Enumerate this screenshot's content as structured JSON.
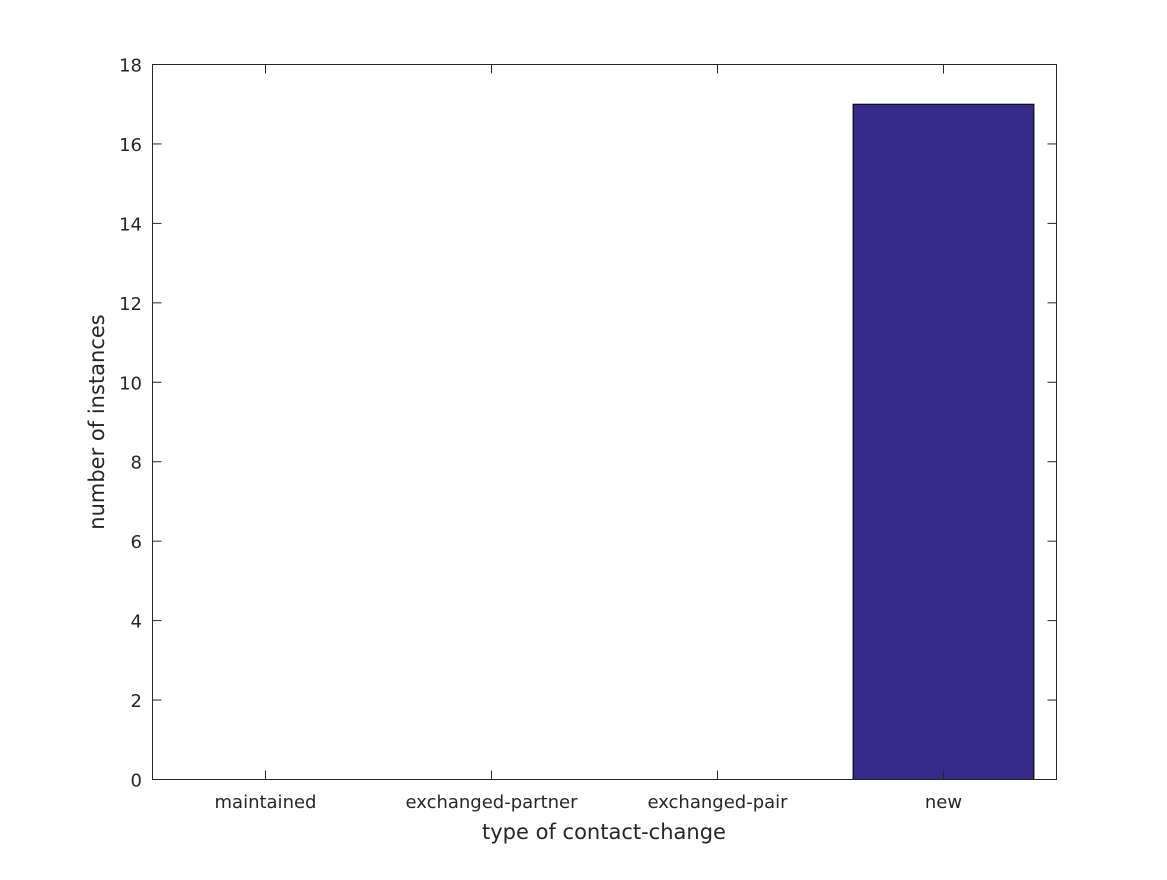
{
  "chart_data": {
    "type": "bar",
    "title": "",
    "xlabel": "type of contact-change",
    "ylabel": "number of instances",
    "categories": [
      "maintained",
      "exchanged-partner",
      "exchanged-pair",
      "new"
    ],
    "values": [
      0,
      0,
      0,
      17
    ],
    "ylim": [
      0,
      18
    ],
    "yticks": [
      0,
      2,
      4,
      6,
      8,
      10,
      12,
      14,
      16,
      18
    ],
    "grid": false,
    "bar_color": "#352a87",
    "axis_color": "#262626"
  }
}
